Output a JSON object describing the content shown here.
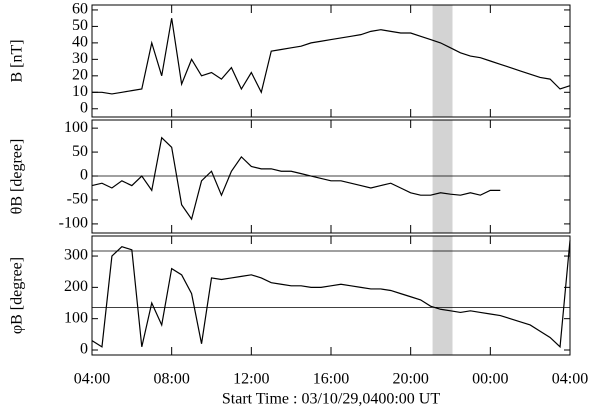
{
  "chart_data": [
    {
      "type": "line",
      "ylabel": "B [nT]",
      "x": [
        0,
        0.5,
        1,
        1.5,
        2,
        2.5,
        3,
        3.5,
        4,
        4.5,
        5,
        5.5,
        6,
        6.5,
        7,
        7.5,
        8,
        8.5,
        9,
        9.5,
        10,
        10.5,
        11,
        11.5,
        12,
        12.5,
        13,
        13.5,
        14,
        14.5,
        15,
        15.5,
        16,
        16.5,
        17,
        17.5,
        18,
        18.5,
        19,
        19.5,
        20,
        20.5,
        21,
        21.5,
        22,
        22.5,
        23,
        23.5,
        24
      ],
      "values": [
        10,
        10,
        9,
        10,
        11,
        12,
        40,
        20,
        55,
        15,
        30,
        20,
        22,
        18,
        25,
        12,
        22,
        10,
        35,
        36,
        37,
        38,
        40,
        41,
        42,
        43,
        44,
        45,
        47,
        48,
        47,
        46,
        46,
        44,
        42,
        40,
        37,
        34,
        32,
        31,
        29,
        27,
        25,
        23,
        21,
        19,
        18,
        12,
        14
      ],
      "color": "#000000",
      "xlim": [
        0,
        24
      ],
      "ylim": [
        -5,
        63
      ],
      "yticks": [
        0,
        10,
        20,
        30,
        40,
        50,
        60
      ],
      "span": [
        17.1,
        18.1
      ],
      "span_color": "#d3d3d3"
    },
    {
      "type": "line",
      "ylabel": "θB [degree]",
      "x": [
        0,
        0.5,
        1,
        1.5,
        2,
        2.5,
        3,
        3.5,
        4,
        4.5,
        5,
        5.5,
        6,
        6.5,
        7,
        7.5,
        8,
        8.5,
        9,
        9.5,
        10,
        10.5,
        11,
        11.5,
        12,
        12.5,
        13,
        13.5,
        14,
        14.5,
        15,
        15.5,
        16,
        16.5,
        17,
        17.5,
        18,
        18.5,
        19,
        19.5,
        20,
        20.5,
        21,
        21.5,
        22,
        22.5,
        23,
        23.5,
        24
      ],
      "values": [
        -20,
        -15,
        -25,
        -10,
        -20,
        0,
        -30,
        80,
        60,
        -60,
        -90,
        -10,
        10,
        -40,
        10,
        40,
        20,
        15,
        15,
        10,
        10,
        5,
        0,
        -5,
        -10,
        -10,
        -15,
        -20,
        -25,
        -20,
        -15,
        -25,
        -35,
        -40,
        -40,
        -35,
        -38,
        -40,
        -35,
        -40,
        -30,
        -30,
        null,
        null,
        null,
        null,
        null,
        null,
        null
      ],
      "color": "#000000",
      "xlim": [
        0,
        24
      ],
      "ylim": [
        -119,
        117
      ],
      "yticks": [
        -100,
        -50,
        0,
        50,
        100
      ],
      "hlines": [
        0
      ],
      "span": [
        17.1,
        18.1
      ],
      "span_color": "#d3d3d3"
    },
    {
      "type": "line",
      "ylabel": "φB [degree]",
      "xlabel": "Start Time : 03/10/29,0400:00 UT",
      "x": [
        0,
        0.5,
        1,
        1.5,
        2,
        2.5,
        3,
        3.5,
        4,
        4.5,
        5,
        5.5,
        6,
        6.5,
        7,
        7.5,
        8,
        8.5,
        9,
        9.5,
        10,
        10.5,
        11,
        11.5,
        12,
        12.5,
        13,
        13.5,
        14,
        14.5,
        15,
        15.5,
        16,
        16.5,
        17,
        17.5,
        18,
        18.5,
        19,
        19.5,
        20,
        20.5,
        21,
        21.5,
        22,
        22.5,
        23,
        23.5,
        24
      ],
      "values": [
        30,
        10,
        300,
        330,
        320,
        10,
        150,
        80,
        260,
        240,
        180,
        20,
        230,
        225,
        230,
        235,
        240,
        230,
        215,
        210,
        205,
        205,
        200,
        200,
        205,
        210,
        205,
        200,
        195,
        195,
        190,
        180,
        170,
        160,
        140,
        130,
        125,
        120,
        125,
        120,
        115,
        110,
        100,
        90,
        80,
        60,
        40,
        10,
        350
      ],
      "color": "#000000",
      "xlim": [
        0,
        24
      ],
      "ylim": [
        -16,
        364
      ],
      "yticks": [
        0,
        100,
        200,
        300
      ],
      "hlines": [
        316,
        136
      ],
      "span": [
        17.1,
        18.1
      ],
      "span_color": "#d3d3d3",
      "xticks": [
        {
          "value": 0,
          "label": "04:00"
        },
        {
          "value": 4,
          "label": "08:00"
        },
        {
          "value": 8,
          "label": "12:00"
        },
        {
          "value": 12,
          "label": "16:00"
        },
        {
          "value": 16,
          "label": "20:00"
        },
        {
          "value": 20,
          "label": "00:00"
        },
        {
          "value": 24,
          "label": "04:00"
        }
      ]
    }
  ]
}
